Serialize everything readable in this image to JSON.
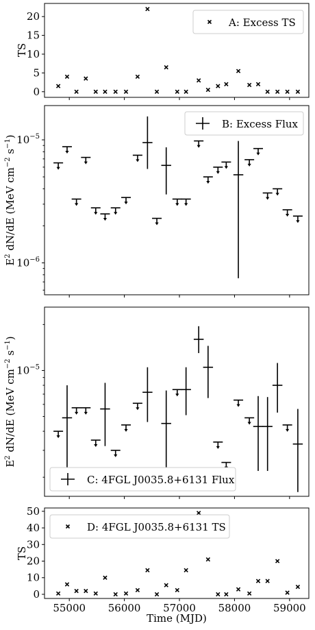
{
  "chart_data": [
    {
      "type": "scatter",
      "panel": "A",
      "legend": "A: Excess TS",
      "ylabel": "TS",
      "yscale": "linear",
      "ylim": [
        -1.5,
        23.5
      ],
      "yticks": [
        0,
        5,
        10,
        15,
        20
      ],
      "ytick_labels": [
        "0",
        "5",
        "10",
        "15",
        "20"
      ],
      "xlim": [
        54550,
        59350
      ],
      "legend_position": "top-right",
      "marker": "x",
      "points": [
        {
          "x": 54800,
          "y": 1.5
        },
        {
          "x": 54960,
          "y": 4.0
        },
        {
          "x": 55130,
          "y": 0.0
        },
        {
          "x": 55300,
          "y": 3.5
        },
        {
          "x": 55480,
          "y": 0.0
        },
        {
          "x": 55650,
          "y": 0.0
        },
        {
          "x": 55840,
          "y": 0.0
        },
        {
          "x": 56030,
          "y": 0.0
        },
        {
          "x": 56240,
          "y": 4.0
        },
        {
          "x": 56420,
          "y": 22.0
        },
        {
          "x": 56590,
          "y": 0.0
        },
        {
          "x": 56760,
          "y": 6.5
        },
        {
          "x": 56960,
          "y": 0.0
        },
        {
          "x": 57120,
          "y": 0.0
        },
        {
          "x": 57350,
          "y": 3.0
        },
        {
          "x": 57520,
          "y": 0.5
        },
        {
          "x": 57700,
          "y": 1.5
        },
        {
          "x": 57850,
          "y": 2.0
        },
        {
          "x": 58070,
          "y": 5.5
        },
        {
          "x": 58270,
          "y": 1.8
        },
        {
          "x": 58430,
          "y": 2.0
        },
        {
          "x": 58600,
          "y": 0.0
        },
        {
          "x": 58780,
          "y": 0.0
        },
        {
          "x": 58960,
          "y": 0.0
        },
        {
          "x": 59150,
          "y": 0.0
        }
      ]
    },
    {
      "type": "scatter",
      "panel": "B",
      "legend": "B: Excess Flux",
      "ylabel": "E$^2$dN/dE (MeV cm$^{-2}$s$^{-1}$)",
      "ylabel_parts": {
        "base": "E",
        "exp1": "2",
        "middle": " dN/dE (MeV cm",
        "exp2": "−2",
        "gap": " s",
        "exp3": "−1",
        "end": ")"
      },
      "yscale": "log",
      "ylim": [
        5.5e-07,
        1.9e-05
      ],
      "yticks": [
        1e-06,
        1e-05
      ],
      "ytick_labels": [
        {
          "base": "10",
          "exp": "−6"
        },
        {
          "base": "10",
          "exp": "−5"
        }
      ],
      "xlim": [
        54550,
        59350
      ],
      "legend_position": "top-right",
      "upper_limits": [
        {
          "x": 54800,
          "y": 6.5e-06
        },
        {
          "x": 54960,
          "y": 8.8e-06
        },
        {
          "x": 55130,
          "y": 3.3e-06
        },
        {
          "x": 55300,
          "y": 7.2e-06
        },
        {
          "x": 55480,
          "y": 2.8e-06
        },
        {
          "x": 55650,
          "y": 2.5e-06
        },
        {
          "x": 55840,
          "y": 2.8e-06
        },
        {
          "x": 56030,
          "y": 3.4e-06
        },
        {
          "x": 56240,
          "y": 7.5e-06
        },
        {
          "x": 56590,
          "y": 2.3e-06
        },
        {
          "x": 56960,
          "y": 3.3e-06
        },
        {
          "x": 57120,
          "y": 3.3e-06
        },
        {
          "x": 57350,
          "y": 9.8e-06
        },
        {
          "x": 57520,
          "y": 5e-06
        },
        {
          "x": 57700,
          "y": 6e-06
        },
        {
          "x": 57850,
          "y": 6.6e-06
        },
        {
          "x": 58270,
          "y": 6.9e-06
        },
        {
          "x": 58430,
          "y": 8.5e-06
        },
        {
          "x": 58600,
          "y": 3.7e-06
        },
        {
          "x": 58780,
          "y": 4e-06
        },
        {
          "x": 58960,
          "y": 2.7e-06
        },
        {
          "x": 59150,
          "y": 2.4e-06
        }
      ],
      "points": [
        {
          "x": 56420,
          "y": 9.5e-06,
          "ylow": 5.8e-06,
          "yhigh": 1.55e-05,
          "xerr": 90
        },
        {
          "x": 56760,
          "y": 6.2e-06,
          "ylow": 3.6e-06,
          "yhigh": 8.7e-06,
          "xerr": 90
        },
        {
          "x": 58070,
          "y": 5.2e-06,
          "ylow": 7.5e-07,
          "yhigh": 9.8e-06,
          "xerr": 90
        }
      ]
    },
    {
      "type": "scatter",
      "panel": "C",
      "legend": "C: 4FGL J0035.8+6131 Flux",
      "ylabel": "E$^2$dN/dE (MeV cm$^{-2}$s$^{-1}$)",
      "ylabel_parts": {
        "base": "E",
        "exp1": "2",
        "middle": " dN/dE (MeV cm",
        "exp2": "−2",
        "gap": " s",
        "exp3": "−1",
        "end": ")"
      },
      "yscale": "log",
      "ylim": [
        1.5e-06,
        2.6e-05
      ],
      "yticks": [
        1e-05
      ],
      "ytick_labels": [
        {
          "base": "10",
          "exp": "−5"
        }
      ],
      "xlim": [
        54550,
        59350
      ],
      "legend_position": "bottom-left",
      "upper_limits": [
        {
          "x": 54800,
          "y": 4e-06
        },
        {
          "x": 55130,
          "y": 5.7e-06
        },
        {
          "x": 55300,
          "y": 5.7e-06
        },
        {
          "x": 55480,
          "y": 3.5e-06
        },
        {
          "x": 55840,
          "y": 3e-06
        },
        {
          "x": 56030,
          "y": 4.4e-06
        },
        {
          "x": 56240,
          "y": 6.1e-06
        },
        {
          "x": 56960,
          "y": 7.5e-06
        },
        {
          "x": 57700,
          "y": 3.4e-06
        },
        {
          "x": 57850,
          "y": 2.5e-06
        },
        {
          "x": 58070,
          "y": 6.4e-06
        },
        {
          "x": 58270,
          "y": 4.9e-06
        },
        {
          "x": 58960,
          "y": 4.4e-06
        }
      ],
      "points": [
        {
          "x": 54960,
          "y": 4.9e-06,
          "ylow": 2.2e-06,
          "yhigh": 8e-06,
          "xerr": 90
        },
        {
          "x": 55650,
          "y": 5.6e-06,
          "ylow": 3.2e-06,
          "yhigh": 8.3e-06,
          "xerr": 90
        },
        {
          "x": 56420,
          "y": 7.2e-06,
          "ylow": 4.6e-06,
          "yhigh": 1.05e-05,
          "xerr": 90
        },
        {
          "x": 56760,
          "y": 4.5e-06,
          "ylow": 2e-06,
          "yhigh": 7.4e-06,
          "xerr": 90
        },
        {
          "x": 57120,
          "y": 7.5e-06,
          "ylow": 5.1e-06,
          "yhigh": 1.05e-05,
          "xerr": 90
        },
        {
          "x": 57350,
          "y": 1.6e-05,
          "ylow": 1.3e-05,
          "yhigh": 1.95e-05,
          "xerr": 90
        },
        {
          "x": 57520,
          "y": 1.05e-05,
          "ylow": 6.6e-06,
          "yhigh": 1.45e-05,
          "xerr": 90
        },
        {
          "x": 58430,
          "y": 4.3e-06,
          "ylow": 2.2e-06,
          "yhigh": 6.8e-06,
          "xerr": 90
        },
        {
          "x": 58600,
          "y": 4.3e-06,
          "ylow": 2.2e-06,
          "yhigh": 6.7e-06,
          "xerr": 90
        },
        {
          "x": 58780,
          "y": 8e-06,
          "ylow": 5.3e-06,
          "yhigh": 1.12e-05,
          "xerr": 90
        },
        {
          "x": 59150,
          "y": 3.3e-06,
          "ylow": 1.6e-06,
          "yhigh": 5.6e-06,
          "xerr": 90
        }
      ]
    },
    {
      "type": "scatter",
      "panel": "D",
      "legend": "D: 4FGL J0035.8+6131 TS",
      "ylabel": "TS",
      "xlabel": "Time (MJD)",
      "yscale": "linear",
      "ylim": [
        -2.5,
        52
      ],
      "yticks": [
        0,
        10,
        20,
        30,
        40,
        50
      ],
      "ytick_labels": [
        "0",
        "10",
        "20",
        "30",
        "40",
        "50"
      ],
      "xlim": [
        54550,
        59350
      ],
      "xticks": [
        55000,
        56000,
        57000,
        58000,
        59000
      ],
      "xtick_labels": [
        "55000",
        "56000",
        "57000",
        "58000",
        "59000"
      ],
      "legend_position": "top-left",
      "marker": "x",
      "points": [
        {
          "x": 54800,
          "y": 0.5
        },
        {
          "x": 54960,
          "y": 6.0
        },
        {
          "x": 55130,
          "y": 2.0
        },
        {
          "x": 55300,
          "y": 2.0
        },
        {
          "x": 55480,
          "y": 0.5
        },
        {
          "x": 55650,
          "y": 10.0
        },
        {
          "x": 55840,
          "y": 0.0
        },
        {
          "x": 56030,
          "y": 0.5
        },
        {
          "x": 56240,
          "y": 2.5
        },
        {
          "x": 56420,
          "y": 14.5
        },
        {
          "x": 56590,
          "y": 0.0
        },
        {
          "x": 56760,
          "y": 5.5
        },
        {
          "x": 56960,
          "y": 2.5
        },
        {
          "x": 57120,
          "y": 14.5
        },
        {
          "x": 57350,
          "y": 49.0
        },
        {
          "x": 57520,
          "y": 21.0
        },
        {
          "x": 57700,
          "y": 0.0
        },
        {
          "x": 57850,
          "y": 0.0
        },
        {
          "x": 58070,
          "y": 3.0
        },
        {
          "x": 58270,
          "y": 0.5
        },
        {
          "x": 58430,
          "y": 8.0
        },
        {
          "x": 58600,
          "y": 8.0
        },
        {
          "x": 58780,
          "y": 20.0
        },
        {
          "x": 58960,
          "y": 1.0
        },
        {
          "x": 59150,
          "y": 4.5
        }
      ]
    }
  ]
}
